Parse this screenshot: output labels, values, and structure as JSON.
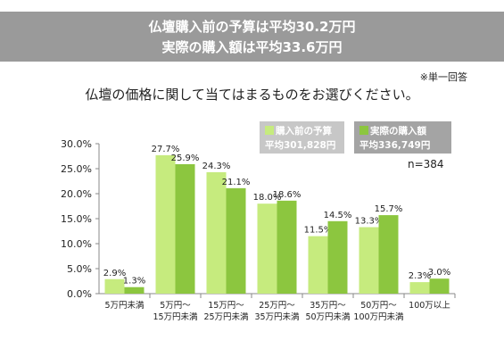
{
  "header": {
    "line1": "仏壇購入前の予算は平均30.2万円",
    "line2": "実際の購入額は平均33.6万円"
  },
  "note": "※単一回答",
  "question": "仏壇の価格に関して当てはまるものをお選びください。",
  "legend": [
    {
      "name": "購入前の予算",
      "sub": "平均301,828円",
      "color": "#c6eb7e"
    },
    {
      "name": "実際の購入額",
      "sub": "平均336,749円",
      "color": "#8cc63f"
    }
  ],
  "n_label": "n=384",
  "chart_data": {
    "type": "bar",
    "categories": [
      [
        "5万円未満"
      ],
      [
        "5万円～",
        "15万円未満"
      ],
      [
        "15万円～",
        "25万円未満"
      ],
      [
        "25万円～",
        "35万円未満"
      ],
      [
        "35万円～",
        "50万円未満"
      ],
      [
        "50万円～",
        "100万円未満"
      ],
      [
        "100万以上"
      ]
    ],
    "series": [
      {
        "name": "購入前の予算",
        "values": [
          2.9,
          27.7,
          24.3,
          18.0,
          11.5,
          13.3,
          2.3
        ],
        "color": "#c6eb7e"
      },
      {
        "name": "実際の購入額",
        "values": [
          1.3,
          25.9,
          21.1,
          18.6,
          14.5,
          15.7,
          3.0
        ],
        "color": "#8cc63f"
      }
    ],
    "ylim": [
      0,
      30
    ],
    "yticks": [
      "0.0%",
      "5.0%",
      "10.0%",
      "15.0%",
      "20.0%",
      "25.0%",
      "30.0%"
    ],
    "ytick_values": [
      0,
      5,
      10,
      15,
      20,
      25,
      30
    ],
    "grid": false
  }
}
